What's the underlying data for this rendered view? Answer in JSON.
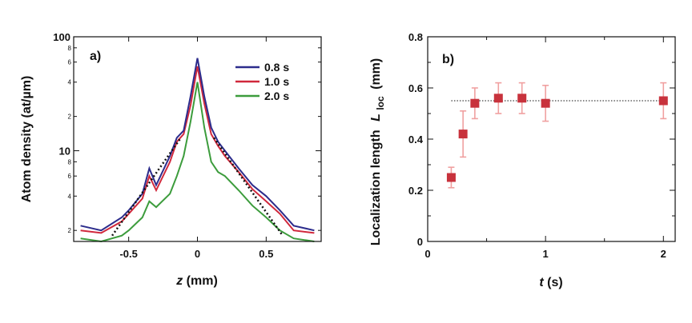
{
  "chart_data": [
    {
      "panel_label": "a)",
      "type": "line",
      "xlabel_var": "z",
      "xlabel_unit": "(mm)",
      "ylabel": "Atom density (at/µm)",
      "y_scale": "log",
      "xlim": [
        -0.9,
        0.9
      ],
      "ylim": [
        1.6,
        100
      ],
      "x_ticks": [
        "-0.5",
        "0",
        "0.5"
      ],
      "y_major_ticks": [
        "100",
        "10"
      ],
      "y_minor_ticks": [
        "8",
        "6",
        "4",
        "2",
        "8",
        "6",
        "4",
        "2"
      ],
      "legend_position": "top-right",
      "series": [
        {
          "name": "0.8 s",
          "color": "#2c2c8c",
          "x": [
            -0.85,
            -0.7,
            -0.55,
            -0.5,
            -0.4,
            -0.35,
            -0.3,
            -0.2,
            -0.15,
            -0.1,
            -0.05,
            0,
            0.05,
            0.1,
            0.15,
            0.2,
            0.3,
            0.4,
            0.5,
            0.6,
            0.7,
            0.85
          ],
          "y": [
            2.2,
            2.0,
            2.6,
            3.0,
            4.2,
            7.0,
            5.0,
            9.0,
            13,
            15,
            30,
            65,
            30,
            16,
            12,
            10,
            7,
            5,
            4,
            3,
            2.2,
            2.0
          ]
        },
        {
          "name": "1.0 s",
          "color": "#d0283c",
          "x": [
            -0.85,
            -0.7,
            -0.55,
            -0.5,
            -0.4,
            -0.35,
            -0.3,
            -0.2,
            -0.15,
            -0.1,
            -0.05,
            0,
            0.05,
            0.1,
            0.15,
            0.2,
            0.3,
            0.4,
            0.5,
            0.6,
            0.7,
            0.85
          ],
          "y": [
            2.0,
            1.9,
            2.4,
            2.8,
            3.8,
            6.0,
            4.5,
            8.0,
            12,
            14,
            25,
            55,
            26,
            14,
            11,
            9,
            6.5,
            4.6,
            3.6,
            2.8,
            2.0,
            1.9
          ]
        },
        {
          "name": "2.0 s",
          "color": "#3c9c3c",
          "x": [
            -0.85,
            -0.7,
            -0.55,
            -0.5,
            -0.4,
            -0.35,
            -0.3,
            -0.2,
            -0.15,
            -0.1,
            -0.05,
            0,
            0.05,
            0.1,
            0.15,
            0.2,
            0.3,
            0.4,
            0.5,
            0.6,
            0.7,
            0.85
          ],
          "y": [
            1.7,
            1.6,
            1.8,
            2.0,
            2.6,
            3.6,
            3.2,
            4.2,
            6.0,
            9.0,
            18,
            40,
            16,
            8,
            6.5,
            6,
            4.5,
            3.3,
            2.6,
            2.0,
            1.7,
            1.6
          ]
        }
      ],
      "fit_lines": [
        {
          "x": [
            -0.62,
            -0.12
          ],
          "y": [
            1.8,
            13
          ]
        },
        {
          "x": [
            0.12,
            0.62
          ],
          "y": [
            13,
            1.8
          ]
        }
      ]
    },
    {
      "panel_label": "b)",
      "type": "scatter",
      "xlabel_var": "t",
      "xlabel_unit": "(s)",
      "ylabel_text": "Localization length",
      "ylabel_var": "L",
      "ylabel_sub": "loc",
      "ylabel_unit": "(mm)",
      "xlim": [
        0,
        2.1
      ],
      "ylim": [
        0,
        0.8
      ],
      "x_ticks": [
        "0",
        "1",
        "2"
      ],
      "y_ticks": [
        "0",
        "0.2",
        "0.4",
        "0.6",
        "0.8"
      ],
      "marker_color": "#c8323c",
      "errorbar_color": "#f0a0a0",
      "points": [
        {
          "x": 0.2,
          "y": 0.25,
          "err": 0.04
        },
        {
          "x": 0.3,
          "y": 0.42,
          "err": 0.09
        },
        {
          "x": 0.4,
          "y": 0.54,
          "err": 0.06
        },
        {
          "x": 0.6,
          "y": 0.56,
          "err": 0.06
        },
        {
          "x": 0.8,
          "y": 0.56,
          "err": 0.06
        },
        {
          "x": 1.0,
          "y": 0.54,
          "err": 0.07
        },
        {
          "x": 2.0,
          "y": 0.55,
          "err": 0.07
        }
      ],
      "reference_line": {
        "y": 0.55,
        "x_from": 0.2,
        "x_to": 2.0,
        "style": "dotted"
      }
    }
  ]
}
